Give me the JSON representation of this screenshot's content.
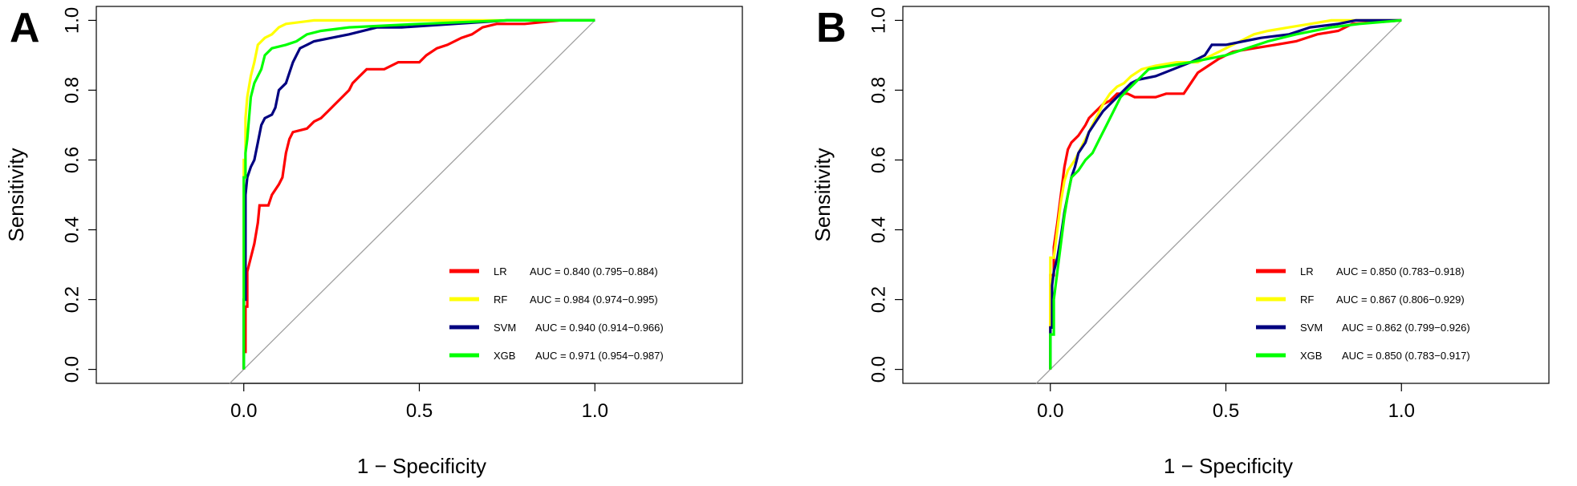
{
  "chart_data": [
    {
      "type": "line",
      "panel_label": "A",
      "xlabel": "1 − Specificity",
      "ylabel": "Sensitivity",
      "xlim": [
        -0.42,
        1.42
      ],
      "ylim": [
        -0.04,
        1.04
      ],
      "xticks": [
        0.0,
        0.5,
        1.0
      ],
      "xtick_labels": [
        "0.0",
        "0.5",
        "1.0"
      ],
      "yticks": [
        0.0,
        0.2,
        0.4,
        0.6,
        0.8,
        1.0
      ],
      "ytick_labels": [
        "0.0",
        "0.2",
        "0.4",
        "0.6",
        "0.8",
        "1.0"
      ],
      "legend_position": "bottom-right",
      "series": [
        {
          "name": "LR",
          "auc_label": "AUC = 0.840 (0.795−0.884)",
          "color": "#ff0000",
          "points": [
            [
              0,
              0
            ],
            [
              0,
              0.05
            ],
            [
              0.005,
              0.05
            ],
            [
              0.005,
              0.18
            ],
            [
              0.01,
              0.18
            ],
            [
              0.01,
              0.28
            ],
            [
              0.02,
              0.32
            ],
            [
              0.03,
              0.36
            ],
            [
              0.04,
              0.42
            ],
            [
              0.045,
              0.47
            ],
            [
              0.07,
              0.47
            ],
            [
              0.08,
              0.5
            ],
            [
              0.1,
              0.53
            ],
            [
              0.11,
              0.55
            ],
            [
              0.12,
              0.62
            ],
            [
              0.13,
              0.66
            ],
            [
              0.14,
              0.68
            ],
            [
              0.18,
              0.69
            ],
            [
              0.2,
              0.71
            ],
            [
              0.22,
              0.72
            ],
            [
              0.24,
              0.74
            ],
            [
              0.26,
              0.76
            ],
            [
              0.28,
              0.78
            ],
            [
              0.3,
              0.8
            ],
            [
              0.31,
              0.82
            ],
            [
              0.33,
              0.84
            ],
            [
              0.35,
              0.86
            ],
            [
              0.4,
              0.86
            ],
            [
              0.44,
              0.88
            ],
            [
              0.5,
              0.88
            ],
            [
              0.52,
              0.9
            ],
            [
              0.55,
              0.92
            ],
            [
              0.58,
              0.93
            ],
            [
              0.62,
              0.95
            ],
            [
              0.65,
              0.96
            ],
            [
              0.68,
              0.98
            ],
            [
              0.72,
              0.99
            ],
            [
              0.8,
              0.99
            ],
            [
              0.9,
              1.0
            ],
            [
              1.0,
              1.0
            ]
          ]
        },
        {
          "name": "RF",
          "auc_label": "AUC = 0.984 (0.974−0.995)",
          "color": "#ffff00",
          "points": [
            [
              0,
              0
            ],
            [
              0,
              0.6
            ],
            [
              0.005,
              0.6
            ],
            [
              0.005,
              0.72
            ],
            [
              0.01,
              0.78
            ],
            [
              0.02,
              0.84
            ],
            [
              0.03,
              0.88
            ],
            [
              0.04,
              0.93
            ],
            [
              0.06,
              0.95
            ],
            [
              0.08,
              0.96
            ],
            [
              0.1,
              0.98
            ],
            [
              0.12,
              0.99
            ],
            [
              0.2,
              1.0
            ],
            [
              1.0,
              1.0
            ]
          ]
        },
        {
          "name": "SVM",
          "auc_label": "AUC = 0.940 (0.914−0.966)",
          "color": "#000080",
          "points": [
            [
              0,
              0
            ],
            [
              0,
              0.2
            ],
            [
              0.005,
              0.2
            ],
            [
              0.005,
              0.5
            ],
            [
              0.01,
              0.55
            ],
            [
              0.02,
              0.58
            ],
            [
              0.03,
              0.6
            ],
            [
              0.04,
              0.65
            ],
            [
              0.05,
              0.7
            ],
            [
              0.06,
              0.72
            ],
            [
              0.08,
              0.73
            ],
            [
              0.09,
              0.75
            ],
            [
              0.1,
              0.8
            ],
            [
              0.12,
              0.82
            ],
            [
              0.13,
              0.85
            ],
            [
              0.14,
              0.88
            ],
            [
              0.15,
              0.9
            ],
            [
              0.16,
              0.92
            ],
            [
              0.18,
              0.93
            ],
            [
              0.2,
              0.94
            ],
            [
              0.25,
              0.95
            ],
            [
              0.3,
              0.96
            ],
            [
              0.38,
              0.98
            ],
            [
              0.45,
              0.98
            ],
            [
              0.6,
              0.99
            ],
            [
              0.75,
              1.0
            ],
            [
              1.0,
              1.0
            ]
          ]
        },
        {
          "name": "XGB",
          "auc_label": "AUC = 0.971 (0.954−0.987)",
          "color": "#00ff00",
          "points": [
            [
              0,
              0
            ],
            [
              0,
              0.55
            ],
            [
              0.005,
              0.55
            ],
            [
              0.005,
              0.62
            ],
            [
              0.01,
              0.66
            ],
            [
              0.015,
              0.72
            ],
            [
              0.02,
              0.78
            ],
            [
              0.03,
              0.82
            ],
            [
              0.05,
              0.86
            ],
            [
              0.06,
              0.9
            ],
            [
              0.08,
              0.92
            ],
            [
              0.12,
              0.93
            ],
            [
              0.15,
              0.94
            ],
            [
              0.18,
              0.96
            ],
            [
              0.22,
              0.97
            ],
            [
              0.3,
              0.98
            ],
            [
              0.5,
              0.99
            ],
            [
              0.75,
              1.0
            ],
            [
              1.0,
              1.0
            ]
          ]
        }
      ],
      "reference_line": [
        [
          -0.04,
          -0.04
        ],
        [
          1.0,
          1.0
        ]
      ]
    },
    {
      "type": "line",
      "panel_label": "B",
      "xlabel": "1 − Specificity",
      "ylabel": "Sensitivity",
      "xlim": [
        -0.42,
        1.42
      ],
      "ylim": [
        -0.04,
        1.04
      ],
      "xticks": [
        0.0,
        0.5,
        1.0
      ],
      "xtick_labels": [
        "0.0",
        "0.5",
        "1.0"
      ],
      "yticks": [
        0.0,
        0.2,
        0.4,
        0.6,
        0.8,
        1.0
      ],
      "ytick_labels": [
        "0.0",
        "0.2",
        "0.4",
        "0.6",
        "0.8",
        "1.0"
      ],
      "legend_position": "bottom-right",
      "series": [
        {
          "name": "LR",
          "auc_label": "AUC = 0.850 (0.783−0.918)",
          "color": "#ff0000",
          "points": [
            [
              0,
              0
            ],
            [
              0,
              0.27
            ],
            [
              0.01,
              0.27
            ],
            [
              0.01,
              0.35
            ],
            [
              0.02,
              0.42
            ],
            [
              0.03,
              0.5
            ],
            [
              0.04,
              0.58
            ],
            [
              0.05,
              0.63
            ],
            [
              0.06,
              0.65
            ],
            [
              0.08,
              0.67
            ],
            [
              0.1,
              0.7
            ],
            [
              0.11,
              0.72
            ],
            [
              0.13,
              0.74
            ],
            [
              0.15,
              0.76
            ],
            [
              0.17,
              0.77
            ],
            [
              0.19,
              0.79
            ],
            [
              0.22,
              0.79
            ],
            [
              0.24,
              0.78
            ],
            [
              0.3,
              0.78
            ],
            [
              0.33,
              0.79
            ],
            [
              0.38,
              0.79
            ],
            [
              0.4,
              0.82
            ],
            [
              0.42,
              0.85
            ],
            [
              0.45,
              0.87
            ],
            [
              0.48,
              0.89
            ],
            [
              0.52,
              0.91
            ],
            [
              0.58,
              0.92
            ],
            [
              0.64,
              0.93
            ],
            [
              0.7,
              0.94
            ],
            [
              0.76,
              0.96
            ],
            [
              0.82,
              0.97
            ],
            [
              0.86,
              0.99
            ],
            [
              1.0,
              1.0
            ]
          ]
        },
        {
          "name": "RF",
          "auc_label": "AUC = 0.867 (0.806−0.929)",
          "color": "#ffff00",
          "points": [
            [
              0,
              0
            ],
            [
              0,
              0.32
            ],
            [
              0.01,
              0.32
            ],
            [
              0.02,
              0.4
            ],
            [
              0.03,
              0.48
            ],
            [
              0.04,
              0.54
            ],
            [
              0.05,
              0.57
            ],
            [
              0.07,
              0.6
            ],
            [
              0.09,
              0.64
            ],
            [
              0.11,
              0.68
            ],
            [
              0.13,
              0.72
            ],
            [
              0.15,
              0.76
            ],
            [
              0.17,
              0.79
            ],
            [
              0.19,
              0.81
            ],
            [
              0.21,
              0.82
            ],
            [
              0.23,
              0.84
            ],
            [
              0.26,
              0.86
            ],
            [
              0.3,
              0.87
            ],
            [
              0.36,
              0.88
            ],
            [
              0.42,
              0.88
            ],
            [
              0.48,
              0.91
            ],
            [
              0.54,
              0.94
            ],
            [
              0.58,
              0.96
            ],
            [
              0.62,
              0.97
            ],
            [
              0.68,
              0.98
            ],
            [
              0.74,
              0.99
            ],
            [
              0.8,
              1.0
            ],
            [
              1.0,
              1.0
            ]
          ]
        },
        {
          "name": "SVM",
          "auc_label": "AUC = 0.862 (0.799−0.926)",
          "color": "#000080",
          "points": [
            [
              0,
              0
            ],
            [
              0,
              0.12
            ],
            [
              0.005,
              0.12
            ],
            [
              0.005,
              0.24
            ],
            [
              0.01,
              0.28
            ],
            [
              0.02,
              0.32
            ],
            [
              0.03,
              0.38
            ],
            [
              0.04,
              0.45
            ],
            [
              0.05,
              0.5
            ],
            [
              0.06,
              0.55
            ],
            [
              0.07,
              0.58
            ],
            [
              0.08,
              0.62
            ],
            [
              0.1,
              0.65
            ],
            [
              0.11,
              0.68
            ],
            [
              0.13,
              0.71
            ],
            [
              0.15,
              0.74
            ],
            [
              0.17,
              0.76
            ],
            [
              0.19,
              0.78
            ],
            [
              0.21,
              0.8
            ],
            [
              0.23,
              0.82
            ],
            [
              0.25,
              0.83
            ],
            [
              0.3,
              0.84
            ],
            [
              0.35,
              0.86
            ],
            [
              0.4,
              0.88
            ],
            [
              0.44,
              0.9
            ],
            [
              0.46,
              0.93
            ],
            [
              0.5,
              0.93
            ],
            [
              0.55,
              0.94
            ],
            [
              0.6,
              0.95
            ],
            [
              0.68,
              0.96
            ],
            [
              0.74,
              0.98
            ],
            [
              0.82,
              0.99
            ],
            [
              0.87,
              1.0
            ],
            [
              1.0,
              1.0
            ]
          ]
        },
        {
          "name": "XGB",
          "auc_label": "AUC = 0.850 (0.783−0.917)",
          "color": "#00ff00",
          "points": [
            [
              0,
              0
            ],
            [
              0,
              0.1
            ],
            [
              0.01,
              0.1
            ],
            [
              0.01,
              0.2
            ],
            [
              0.02,
              0.28
            ],
            [
              0.03,
              0.36
            ],
            [
              0.04,
              0.44
            ],
            [
              0.05,
              0.5
            ],
            [
              0.06,
              0.55
            ],
            [
              0.08,
              0.57
            ],
            [
              0.1,
              0.6
            ],
            [
              0.12,
              0.62
            ],
            [
              0.14,
              0.66
            ],
            [
              0.16,
              0.7
            ],
            [
              0.18,
              0.74
            ],
            [
              0.2,
              0.78
            ],
            [
              0.22,
              0.8
            ],
            [
              0.24,
              0.82
            ],
            [
              0.26,
              0.84
            ],
            [
              0.28,
              0.86
            ],
            [
              0.34,
              0.87
            ],
            [
              0.4,
              0.88
            ],
            [
              0.45,
              0.89
            ],
            [
              0.5,
              0.9
            ],
            [
              0.56,
              0.92
            ],
            [
              0.62,
              0.94
            ],
            [
              0.7,
              0.96
            ],
            [
              0.8,
              0.98
            ],
            [
              0.88,
              0.99
            ],
            [
              1.0,
              1.0
            ]
          ]
        }
      ],
      "reference_line": [
        [
          -0.04,
          -0.04
        ],
        [
          1.0,
          1.0
        ]
      ]
    }
  ]
}
